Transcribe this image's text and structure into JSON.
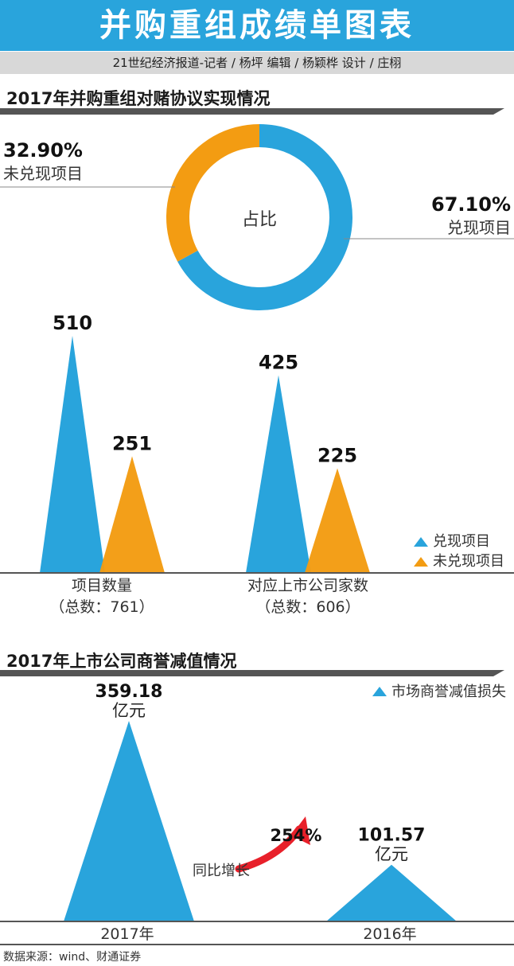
{
  "header": {
    "title": "并购重组成绩单图表",
    "byline": "21世纪经济报道-记者 / 杨坪   编辑 / 杨颖桦  设计 / 庄栩"
  },
  "section1": {
    "title": "2017年并购重组对赌协议实现情况"
  },
  "section2": {
    "title": "2017年上市公司商誉减值情况"
  },
  "colors": {
    "blue": "#29a4dc",
    "orange": "#f39c12",
    "dark": "#555555",
    "red": "#e8202a"
  },
  "chart_data": [
    {
      "type": "pie",
      "center_label": "占比",
      "slices": [
        {
          "label": "兑现项目",
          "value": 67.1,
          "display": "67.10%",
          "color": "#29a4dc"
        },
        {
          "label": "未兑现项目",
          "value": 32.9,
          "display": "32.90%",
          "color": "#f39c12"
        }
      ]
    },
    {
      "type": "bar",
      "categories": [
        {
          "name": "项目数量",
          "note": "（总数：761）"
        },
        {
          "name": "对应上市公司家数",
          "note": "（总数：606）"
        }
      ],
      "series": [
        {
          "name": "兑现项目",
          "values": [
            510,
            425
          ],
          "color": "#29a4dc"
        },
        {
          "name": "未兑现项目",
          "values": [
            251,
            225
          ],
          "color": "#f39c12"
        }
      ],
      "ylim": [
        0,
        510
      ]
    },
    {
      "type": "bar",
      "legend": "市场商誉减值损失",
      "categories": [
        "2017年",
        "2016年"
      ],
      "values": [
        359.18,
        101.57
      ],
      "value_labels": [
        "359.18",
        "101.57"
      ],
      "unit": "亿元",
      "annotation": {
        "label": "同比增长",
        "value": "254%"
      },
      "color": "#29a4dc",
      "ylim": [
        0,
        359.18
      ]
    }
  ],
  "footer": {
    "source": "数据来源：wind、财通证券"
  }
}
